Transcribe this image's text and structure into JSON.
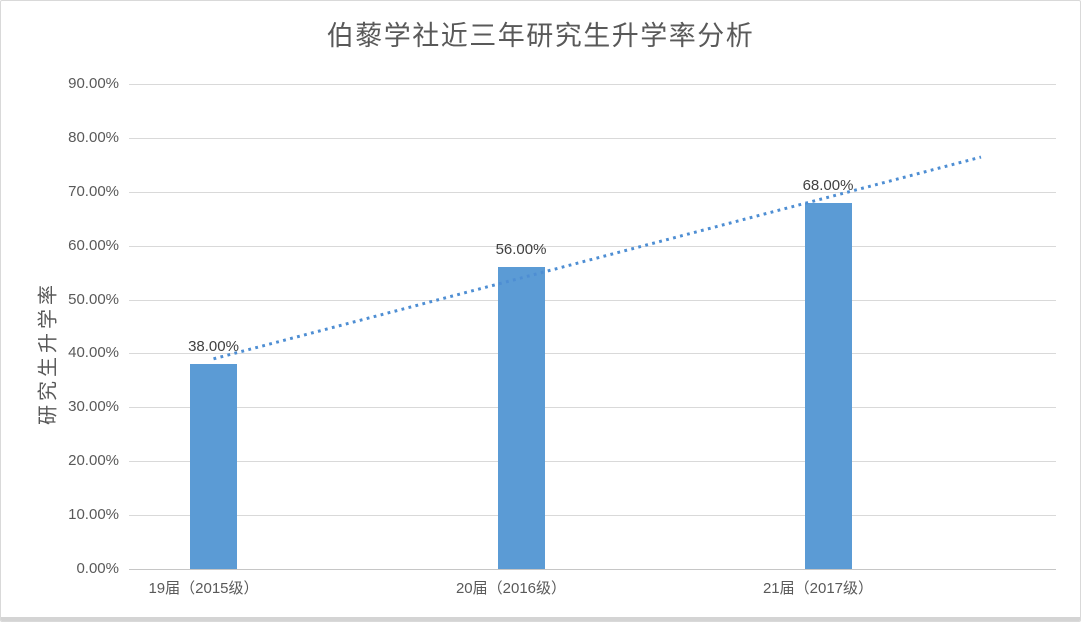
{
  "window": {
    "background": "#FFFFFF",
    "border_color": "#D9D9D9"
  },
  "chart_data": {
    "type": "bar",
    "title": "伯藜学社近三年研究生升学率分析",
    "ylabel": "研究生升学率",
    "xlabel": "",
    "categories": [
      "19届（2015级）",
      "20届（2016级）",
      "21届（2017级）"
    ],
    "values": [
      0.38,
      0.56,
      0.68
    ],
    "data_labels": [
      "38.00%",
      "56.00%",
      "68.00%"
    ],
    "y_tick_labels": [
      "0.00%",
      "10.00%",
      "20.00%",
      "30.00%",
      "40.00%",
      "50.00%",
      "60.00%",
      "70.00%",
      "80.00%",
      "90.00%"
    ],
    "ylim": [
      0,
      0.9
    ],
    "grid": true,
    "legend_position": "none",
    "bar_color": "#5B9BD5",
    "trendline": {
      "type": "linear",
      "style": "dotted",
      "color": "#4E8ED3",
      "extends_past_last_category": true
    },
    "colors": {
      "title_text": "#595959",
      "axis_text": "#595959",
      "data_label_text": "#404040",
      "gridline": "#D9D9D9",
      "axis_line": "#C6C6C6"
    }
  }
}
